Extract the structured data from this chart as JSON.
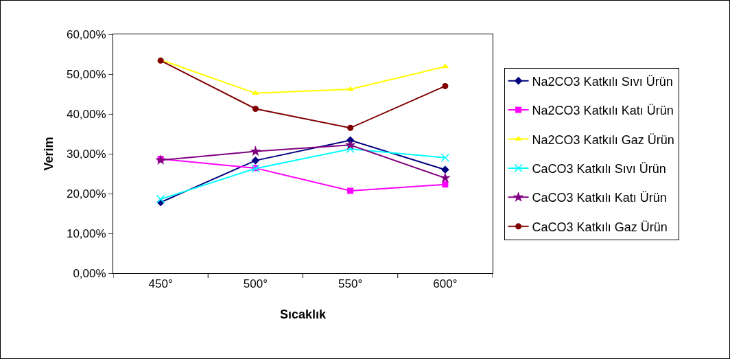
{
  "chart_data": {
    "type": "line",
    "xlabel": "Sıcaklık",
    "ylabel": "Verim",
    "categories": [
      "450°",
      "500°",
      "550°",
      "600°"
    ],
    "ylim": [
      0,
      60
    ],
    "yticks": [
      {
        "value": 0,
        "label": "0,00%"
      },
      {
        "value": 10,
        "label": "10,00%"
      },
      {
        "value": 20,
        "label": "20,00%"
      },
      {
        "value": 30,
        "label": "30,00%"
      },
      {
        "value": 40,
        "label": "40,00%"
      },
      {
        "value": 50,
        "label": "50,00%"
      },
      {
        "value": 60,
        "label": "60,00%"
      }
    ],
    "grid": false,
    "legend": "right",
    "line_style": "solid",
    "series": [
      {
        "name": "Na2CO3 Katkılı Sıvı Ürün",
        "color": "#000080",
        "marker": "diamond",
        "values": [
          17.8,
          28.3,
          33.4,
          26.0
        ]
      },
      {
        "name": "Na2CO3 Katkılı Katı Ürün",
        "color": "#ff00ff",
        "marker": "square",
        "values": [
          28.7,
          26.4,
          20.7,
          22.3
        ]
      },
      {
        "name": "Na2CO3 Katkılı Gaz Ürün",
        "color": "#ffff00",
        "marker": "triangle",
        "values": [
          53.6,
          45.2,
          46.2,
          51.9
        ]
      },
      {
        "name": "CaCO3 Katkılı Sıvı Ürün",
        "color": "#00ffff",
        "marker": "cross",
        "values": [
          18.6,
          26.3,
          31.2,
          29.0
        ]
      },
      {
        "name": "CaCO3 Katkılı Katı Ürün",
        "color": "#800080",
        "marker": "star",
        "values": [
          28.4,
          30.6,
          32.2,
          23.9
        ]
      },
      {
        "name": "CaCO3 Katkılı Gaz Ürün",
        "color": "#800000",
        "marker": "circle",
        "values": [
          53.4,
          41.3,
          36.5,
          47.0
        ]
      }
    ]
  }
}
